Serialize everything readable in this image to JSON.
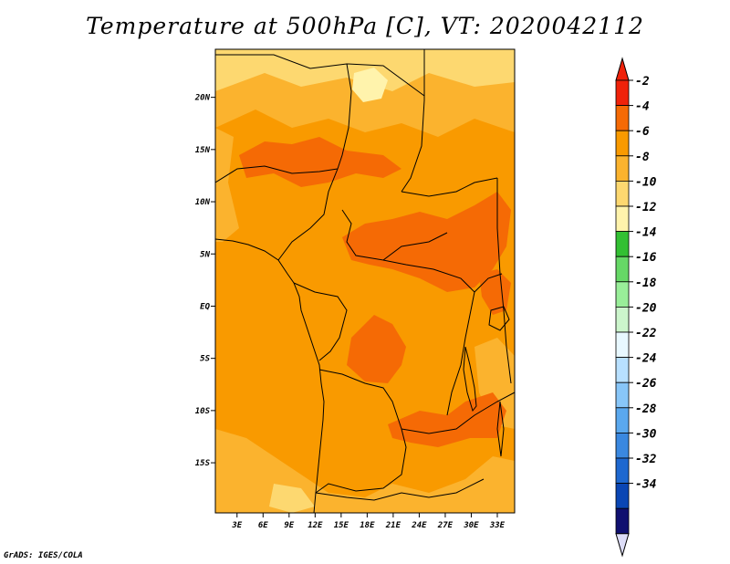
{
  "title": "Temperature at 500hPa [C], VT: 2020042112",
  "credit": "GrADS: IGES/COLA",
  "lat_labels": [
    "20N",
    "15N",
    "10N",
    "5N",
    "EQ",
    "5S",
    "10S",
    "15S"
  ],
  "lat_values": [
    20,
    15,
    10,
    5,
    0,
    -5,
    -10,
    -15
  ],
  "lon_labels": [
    "3E",
    "6E",
    "9E",
    "12E",
    "15E",
    "18E",
    "21E",
    "24E",
    "27E",
    "30E",
    "33E"
  ],
  "lon_values": [
    3,
    6,
    9,
    12,
    15,
    18,
    21,
    24,
    27,
    30,
    33
  ],
  "map_extent": {
    "lon_min": 0.5,
    "lon_max": 35,
    "lat_min": -19.8,
    "lat_max": 24.6
  },
  "colorbar": {
    "labels": [
      "-2",
      "-4",
      "-6",
      "-8",
      "-10",
      "-12",
      "-14",
      "-16",
      "-18",
      "-20",
      "-22",
      "-24",
      "-26",
      "-28",
      "-30",
      "-32",
      "-34"
    ],
    "colors": [
      "#f0220a",
      "#f56a05",
      "#f99a00",
      "#fbb32e",
      "#fdd870",
      "#fff3ac",
      "#33c033",
      "#66d866",
      "#99ee99",
      "#ccf5cc",
      "#e8f8ff",
      "#b8e0ff",
      "#88c6f8",
      "#5aa8ee",
      "#3a88e0",
      "#1e68d0",
      "#0a46b4",
      "#101070"
    ],
    "over_color": "#f0220a",
    "under_color": "#ddddf8"
  },
  "field_colors": {
    "base": "#f99a00",
    "light": "#fbb32e",
    "lighter": "#fdd870",
    "lightest": "#fff3ac",
    "warm": "#f56a05"
  }
}
